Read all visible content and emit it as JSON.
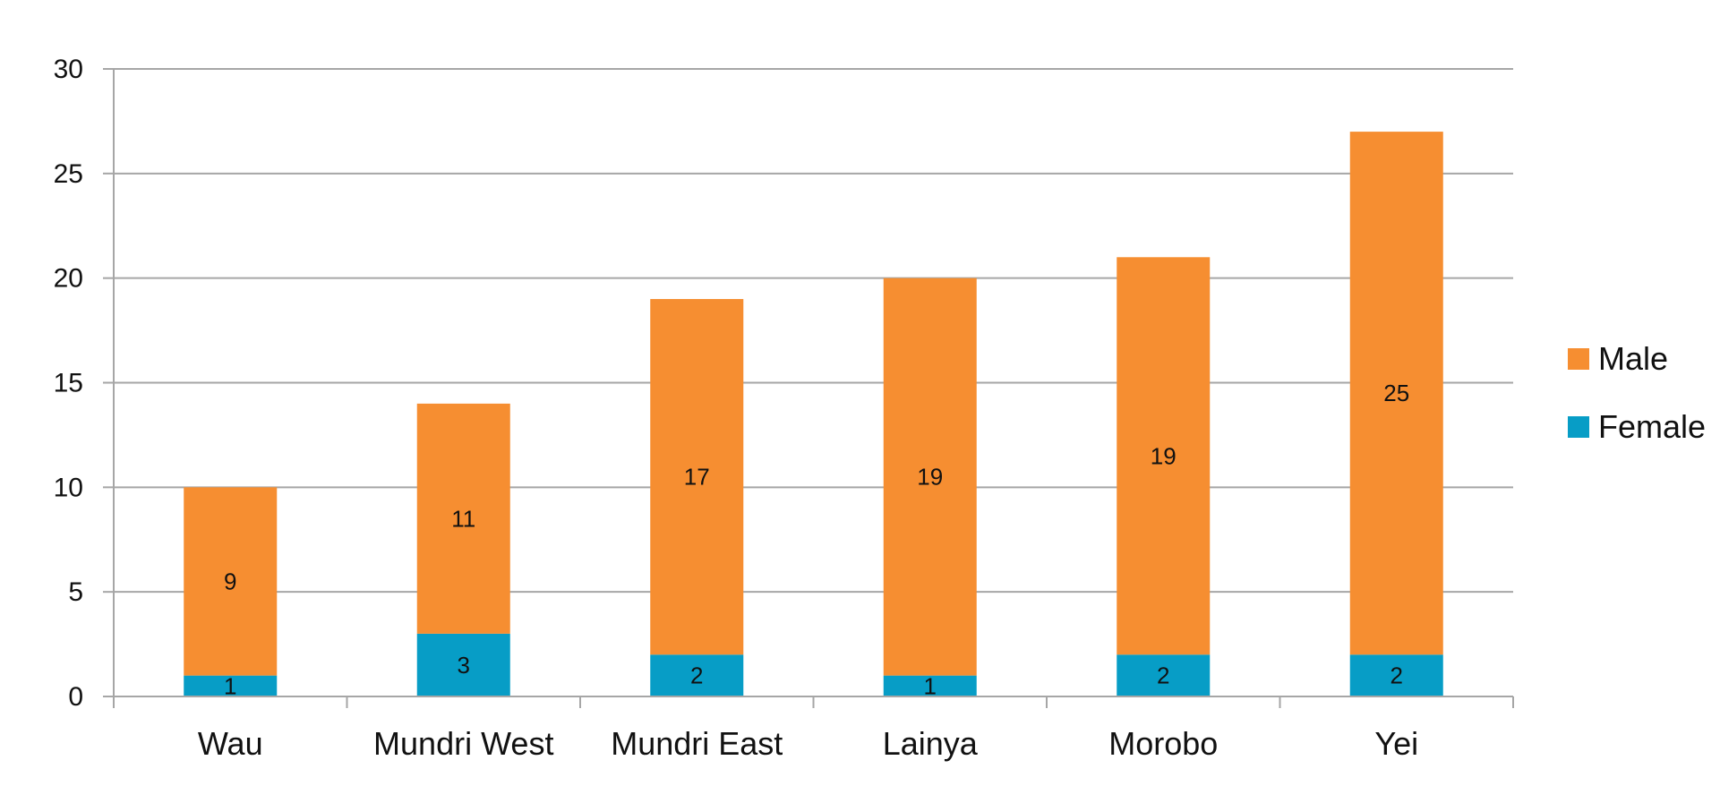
{
  "chart_data": {
    "type": "bar",
    "stacked": true,
    "categories": [
      "Wau",
      "Mundri West",
      "Mundri East",
      "Lainya",
      "Morobo",
      "Yei"
    ],
    "series": [
      {
        "name": "Female",
        "values": [
          1,
          3,
          2,
          1,
          2,
          2
        ],
        "color": "#079DC6"
      },
      {
        "name": "Male",
        "values": [
          9,
          11,
          17,
          19,
          19,
          25
        ],
        "color": "#F68E31"
      }
    ],
    "y_ticks": [
      "0",
      "5",
      "10",
      "15",
      "20",
      "25",
      "30"
    ],
    "ylim": [
      0,
      30
    ],
    "grid": true,
    "legend": {
      "position": "right",
      "order": [
        "Male",
        "Female"
      ]
    },
    "title": "",
    "xlabel": "",
    "ylabel": ""
  }
}
